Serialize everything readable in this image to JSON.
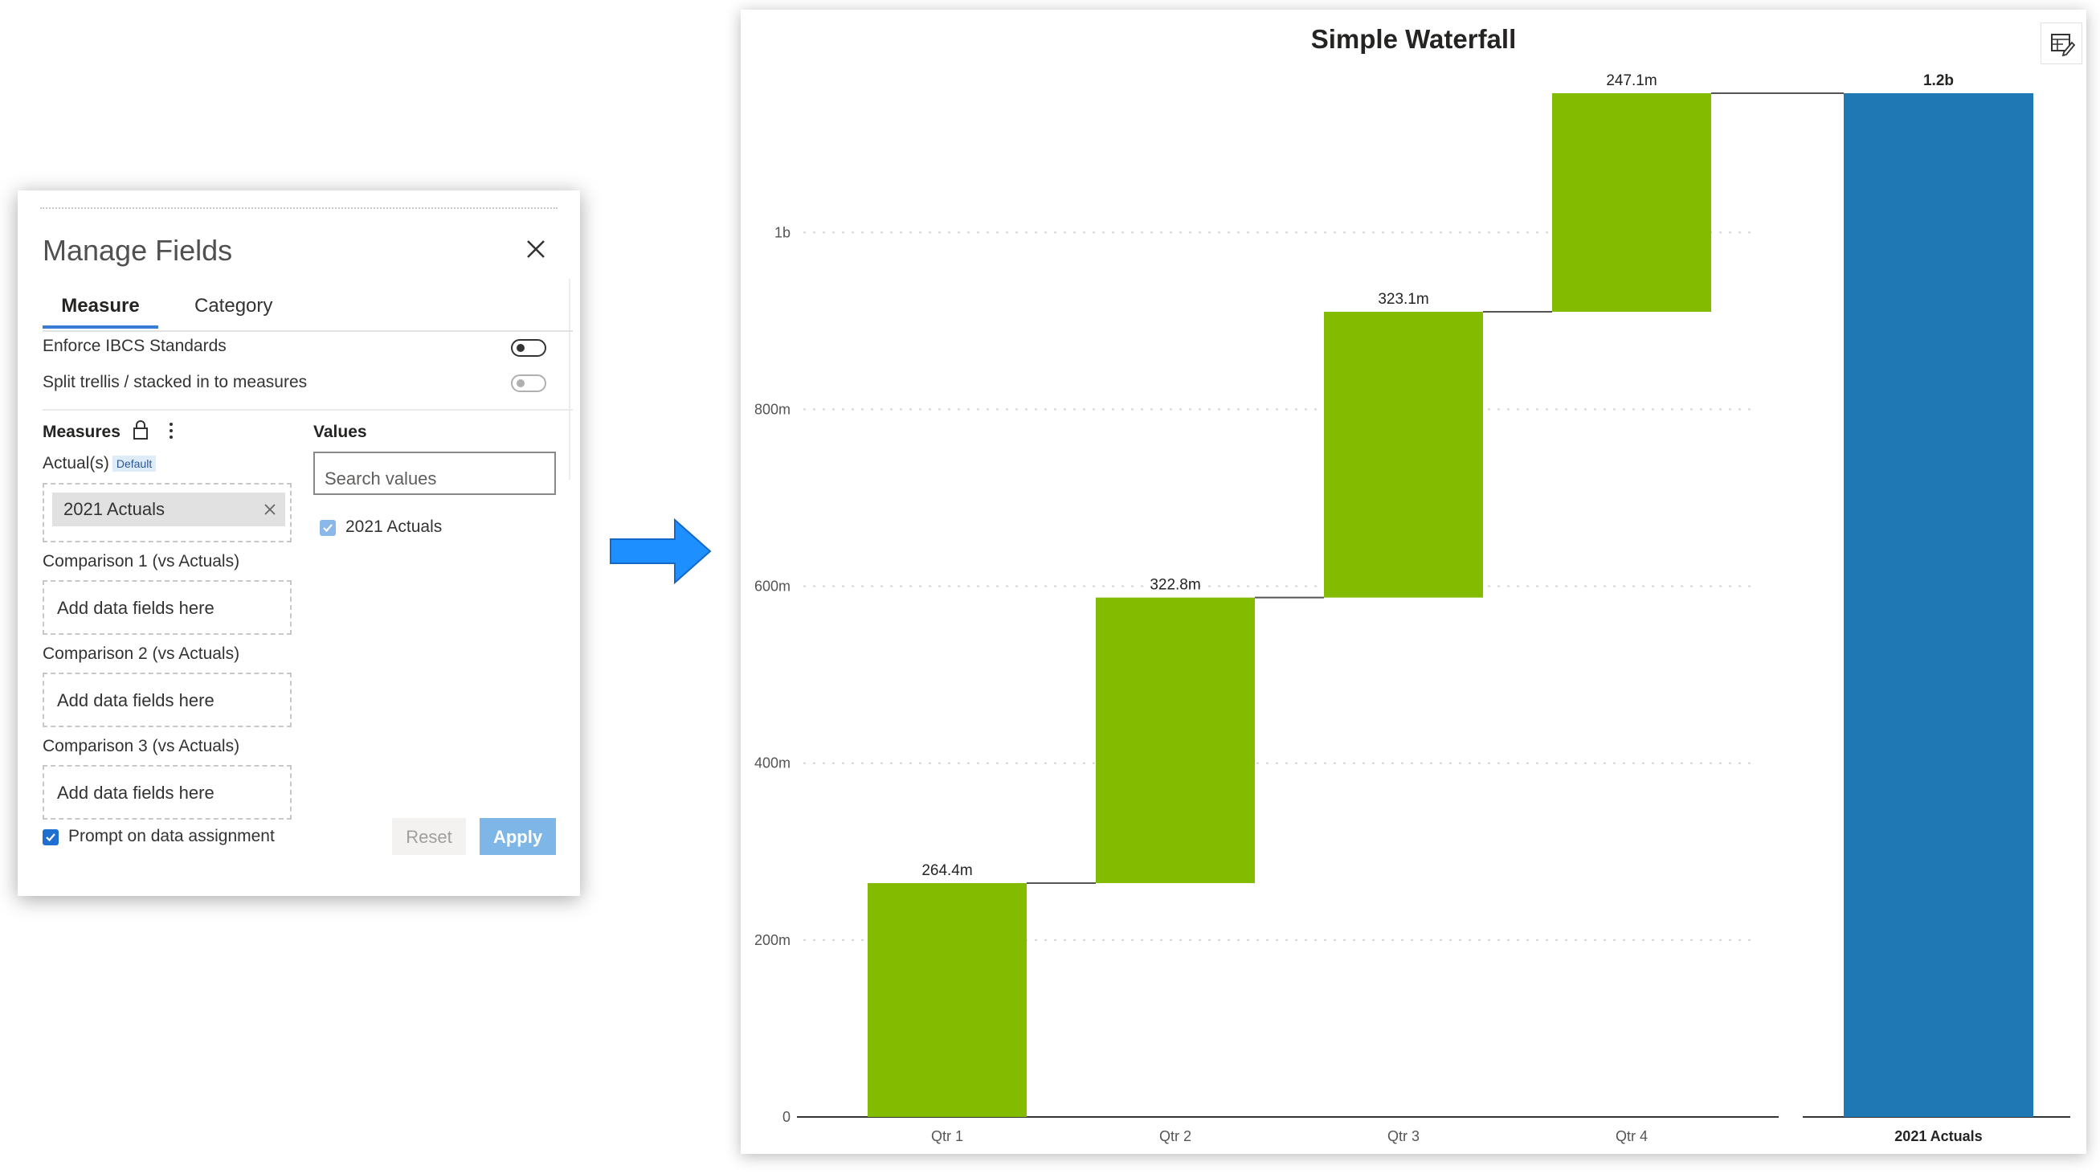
{
  "panel": {
    "title": "Manage Fields",
    "tabs": [
      {
        "label": "Measure",
        "active": true
      },
      {
        "label": "Category",
        "active": false
      }
    ],
    "toggles": [
      {
        "label": "Enforce IBCS Standards",
        "enabled": true
      },
      {
        "label": "Split trellis / stacked in to measures",
        "enabled": false
      }
    ],
    "measures_label": "Measures",
    "actuals": {
      "label": "Actual(s)",
      "badge": "Default",
      "chip": "2021 Actuals"
    },
    "comparisons": [
      {
        "label": "Comparison 1 (vs Actuals)",
        "placeholder": "Add data fields here"
      },
      {
        "label": "Comparison 2 (vs Actuals)",
        "placeholder": "Add data fields here"
      },
      {
        "label": "Comparison 3 (vs Actuals)",
        "placeholder": "Add data fields here"
      }
    ],
    "values_label": "Values",
    "search_placeholder": "Search values",
    "value_items": [
      {
        "label": "2021 Actuals",
        "checked": true
      }
    ],
    "prompt_label": "Prompt on data assignment",
    "prompt_checked": true,
    "reset_label": "Reset",
    "apply_label": "Apply"
  },
  "colors": {
    "accent": "#3a7bd5",
    "arrow": "#1e8fff",
    "increase": "#82bb00",
    "total": "#1f77b4"
  },
  "icons": {
    "close": "close-icon",
    "lock": "lock-icon",
    "more": "more-vertical-icon",
    "table": "table-edit-icon",
    "arrow": "arrow-right-icon"
  },
  "chart_data": {
    "type": "bar",
    "subtype": "waterfall",
    "title": "Simple Waterfall",
    "categories": [
      "Qtr 1",
      "Qtr 2",
      "Qtr 3",
      "Qtr 4"
    ],
    "values": [
      264.4,
      322.8,
      323.1,
      247.1
    ],
    "value_labels": [
      "264.4m",
      "322.8m",
      "323.1m",
      "247.1m"
    ],
    "total": {
      "label": "2021 Actuals",
      "value": 1157.4,
      "value_label": "1.2b"
    },
    "units": "m",
    "ylim": [
      0,
      1157.4
    ],
    "yticks": [
      0,
      200,
      400,
      600,
      800,
      1000
    ],
    "ytick_labels": [
      "0",
      "200m",
      "400m",
      "600m",
      "800m",
      "1b"
    ],
    "grid": true
  }
}
